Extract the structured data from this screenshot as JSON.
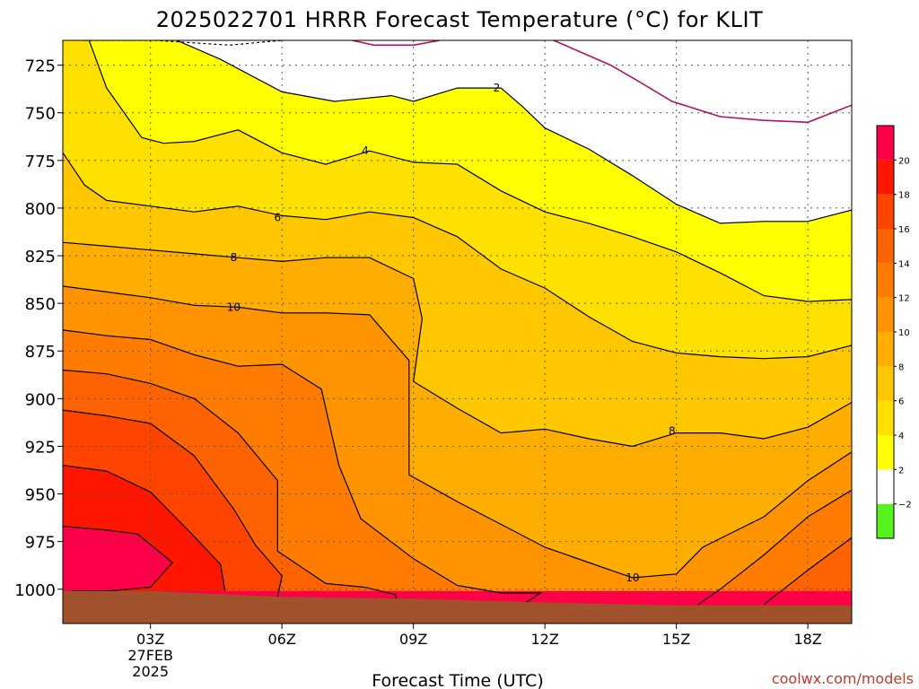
{
  "chart_data": {
    "type": "heatmap",
    "title": "2025022701 HRRR Forecast Temperature (°C) for KLIT",
    "xlabel": "Forecast Time (UTC)",
    "ylabel": "",
    "x_unit": "forecast hour from 00Z 27 Feb 2025",
    "xlim": [
      1,
      19
    ],
    "y_unit": "hPa",
    "ylim": [
      1018,
      712
    ],
    "y_ticks": [
      725,
      750,
      775,
      800,
      825,
      850,
      875,
      900,
      925,
      950,
      975,
      1000
    ],
    "y_tick_labels": [
      "725",
      "750",
      "775",
      "800",
      "825",
      "850",
      "875",
      "900",
      "925",
      "950",
      "975",
      "1000"
    ],
    "x_ticks": [
      3,
      6,
      9,
      12,
      15,
      18
    ],
    "x_tick_labels": [
      "03Z",
      "06Z",
      "09Z",
      "12Z",
      "15Z",
      "18Z"
    ],
    "x_date_label": [
      "27FEB",
      "2025"
    ],
    "grid": true,
    "legend": "right",
    "colorbar": {
      "ticks": [
        -2,
        2,
        4,
        6,
        8,
        10,
        12,
        14,
        16,
        18,
        20
      ],
      "tick_labels": [
        "−2",
        "2",
        "4",
        "6",
        "8",
        "10",
        "12",
        "14",
        "16",
        "18",
        "20"
      ],
      "bands": [
        {
          "lo": -6,
          "hi": -2,
          "color": "#55f21e"
        },
        {
          "lo": -2,
          "hi": 2,
          "color": "#ffffff"
        },
        {
          "lo": 2,
          "hi": 4,
          "color": "#ffff00"
        },
        {
          "lo": 4,
          "hi": 6,
          "color": "#ffe100"
        },
        {
          "lo": 6,
          "hi": 8,
          "color": "#ffc700"
        },
        {
          "lo": 8,
          "hi": 10,
          "color": "#ffae00"
        },
        {
          "lo": 10,
          "hi": 12,
          "color": "#ff9400"
        },
        {
          "lo": 12,
          "hi": 14,
          "color": "#ff7c00"
        },
        {
          "lo": 14,
          "hi": 16,
          "color": "#ff6200"
        },
        {
          "lo": 16,
          "hi": 18,
          "color": "#ff4400"
        },
        {
          "lo": 18,
          "hi": 20,
          "color": "#ff1600"
        },
        {
          "lo": 20,
          "hi": 22,
          "color": "#ff0048"
        }
      ]
    },
    "contours": [
      {
        "level": -2,
        "points": [
          [
            1.5,
            712
          ],
          [
            3.1,
            712
          ],
          [
            4.8,
            714.5
          ],
          [
            6.0,
            712
          ]
        ],
        "dashed": true
      },
      {
        "level": 0,
        "points": [
          [
            7.6,
            712
          ],
          [
            8.1,
            714.5
          ],
          [
            9.0,
            714.5
          ],
          [
            9.6,
            712
          ]
        ]
      },
      {
        "level": 0,
        "points": [
          [
            12.2,
            712
          ],
          [
            13.5,
            725
          ],
          [
            14.1,
            733
          ],
          [
            14.9,
            744
          ],
          [
            16.0,
            752
          ],
          [
            17.0,
            754
          ],
          [
            18.0,
            755
          ],
          [
            19.0,
            746
          ]
        ]
      },
      {
        "level": 2,
        "points": [
          [
            3.6,
            712
          ],
          [
            4.6,
            722
          ],
          [
            6.0,
            739
          ],
          [
            7.2,
            744
          ],
          [
            8.5,
            741
          ],
          [
            9.0,
            744
          ],
          [
            10.0,
            737
          ],
          [
            11.0,
            737
          ],
          [
            11.5,
            747
          ],
          [
            12.0,
            758
          ],
          [
            13.0,
            769
          ],
          [
            14.0,
            783
          ],
          [
            15.0,
            798
          ],
          [
            15.6,
            804
          ],
          [
            16.0,
            808
          ],
          [
            17.0,
            807
          ],
          [
            18.0,
            807
          ],
          [
            19.0,
            801
          ]
        ]
      },
      {
        "level": 4,
        "points": [
          [
            1.6,
            712
          ],
          [
            2.0,
            737
          ],
          [
            2.8,
            763
          ],
          [
            3.3,
            766
          ],
          [
            4.0,
            765
          ],
          [
            5.0,
            759
          ],
          [
            6.0,
            771
          ],
          [
            7.0,
            777
          ],
          [
            8.0,
            770
          ],
          [
            9.0,
            776
          ],
          [
            10.0,
            777
          ],
          [
            11.0,
            791
          ],
          [
            12.0,
            802
          ],
          [
            13.0,
            808
          ],
          [
            14.0,
            815
          ],
          [
            15.0,
            823
          ],
          [
            16.0,
            834
          ],
          [
            17.0,
            846
          ],
          [
            18.0,
            849
          ],
          [
            19.0,
            848
          ]
        ]
      },
      {
        "level": 6,
        "points": [
          [
            1.0,
            771
          ],
          [
            1.5,
            788
          ],
          [
            2.0,
            796
          ],
          [
            3.0,
            799
          ],
          [
            4.0,
            802
          ],
          [
            5.0,
            799
          ],
          [
            6.0,
            804
          ],
          [
            7.0,
            806
          ],
          [
            8.0,
            802
          ],
          [
            9.0,
            805
          ],
          [
            10.0,
            815
          ],
          [
            11.0,
            832
          ],
          [
            12.0,
            842
          ],
          [
            13.0,
            857
          ],
          [
            14.0,
            870
          ],
          [
            15.0,
            876
          ],
          [
            16.0,
            878
          ],
          [
            17.0,
            879
          ],
          [
            18.0,
            878
          ],
          [
            19.0,
            872
          ]
        ]
      },
      {
        "level": 8,
        "points": [
          [
            1.0,
            818
          ],
          [
            2.0,
            820
          ],
          [
            3.0,
            822
          ],
          [
            4.0,
            824
          ],
          [
            5.0,
            826
          ],
          [
            6.0,
            828
          ],
          [
            7.0,
            826
          ],
          [
            8.0,
            826
          ],
          [
            9.0,
            837
          ],
          [
            9.2,
            858
          ],
          [
            9.0,
            891
          ],
          [
            10.0,
            905
          ],
          [
            11.0,
            918
          ],
          [
            12.0,
            916
          ],
          [
            13.0,
            921
          ],
          [
            14.0,
            925
          ],
          [
            15.0,
            918
          ],
          [
            16.0,
            918
          ],
          [
            17.0,
            921
          ],
          [
            18.0,
            915
          ],
          [
            19.0,
            902
          ]
        ]
      },
      {
        "level": 10,
        "points": [
          [
            1.0,
            841
          ],
          [
            2.0,
            844
          ],
          [
            3.0,
            847
          ],
          [
            4.0,
            851
          ],
          [
            5.0,
            852
          ],
          [
            6.0,
            855
          ],
          [
            7.0,
            855
          ],
          [
            8.0,
            856
          ],
          [
            8.9,
            880
          ],
          [
            8.9,
            913
          ],
          [
            8.9,
            940
          ],
          [
            10.0,
            954
          ],
          [
            11.0,
            966
          ],
          [
            12.0,
            978
          ],
          [
            13.0,
            986
          ],
          [
            14.0,
            994
          ],
          [
            15.0,
            992
          ],
          [
            15.6,
            978
          ],
          [
            17.0,
            962
          ],
          [
            18.0,
            943
          ],
          [
            19.0,
            928
          ]
        ]
      },
      {
        "level": 12,
        "points": [
          [
            1.0,
            864
          ],
          [
            2.0,
            867
          ],
          [
            3.0,
            869
          ],
          [
            4.0,
            877
          ],
          [
            5.0,
            883
          ],
          [
            6.0,
            882
          ],
          [
            6.9,
            895
          ],
          [
            7.3,
            935
          ],
          [
            7.8,
            963
          ],
          [
            9.0,
            984
          ],
          [
            10.0,
            998
          ],
          [
            11.0,
            1002
          ],
          [
            11.9,
            1002
          ],
          [
            11.5,
            1008
          ],
          [
            12.0,
            1008
          ]
        ]
      },
      {
        "level": 12,
        "points": [
          [
            15.5,
            1008
          ],
          [
            16.0,
            1000
          ],
          [
            17.0,
            982
          ],
          [
            18.0,
            962
          ],
          [
            19.0,
            948
          ]
        ]
      },
      {
        "level": 14,
        "points": [
          [
            1.0,
            885
          ],
          [
            2.0,
            887
          ],
          [
            3.0,
            892
          ],
          [
            4.0,
            900
          ],
          [
            5.0,
            918
          ],
          [
            5.9,
            943
          ],
          [
            5.9,
            980
          ],
          [
            7.0,
            997
          ],
          [
            7.9,
            999
          ],
          [
            8.6,
            1003
          ],
          [
            8.6,
            1006
          ]
        ]
      },
      {
        "level": 14,
        "points": [
          [
            17.0,
            1008
          ],
          [
            18.0,
            990
          ],
          [
            19.0,
            973
          ]
        ]
      },
      {
        "level": 16,
        "points": [
          [
            1.0,
            906
          ],
          [
            2.0,
            909
          ],
          [
            3.0,
            913
          ],
          [
            4.0,
            930
          ],
          [
            4.9,
            958
          ],
          [
            5.4,
            977
          ],
          [
            6.0,
            993
          ],
          [
            5.9,
            1004
          ],
          [
            5.7,
            1006
          ]
        ]
      },
      {
        "level": 18,
        "points": [
          [
            1.0,
            935
          ],
          [
            2.0,
            938
          ],
          [
            3.0,
            949
          ],
          [
            3.9,
            970
          ],
          [
            4.6,
            987
          ],
          [
            4.7,
            1001
          ]
        ]
      },
      {
        "level": 20,
        "points": [
          [
            1.0,
            967
          ],
          [
            2.0,
            969
          ],
          [
            2.7,
            971
          ],
          [
            3.5,
            986
          ],
          [
            3.0,
            999
          ],
          [
            2.0,
            1001
          ],
          [
            1.2,
            1001
          ]
        ]
      }
    ],
    "contour_labels": [
      {
        "text": "2",
        "x": 10.9,
        "y": 737
      },
      {
        "text": "4",
        "x": 7.9,
        "y": 770
      },
      {
        "text": "6",
        "x": 5.9,
        "y": 805
      },
      {
        "text": "8",
        "x": 4.9,
        "y": 826
      },
      {
        "text": "10",
        "x": 4.9,
        "y": 852
      },
      {
        "text": "8",
        "x": 14.9,
        "y": 917
      },
      {
        "text": "10",
        "x": 14.0,
        "y": 994
      }
    ],
    "terrain": {
      "color": "#a0522d",
      "top": [
        [
          1,
          1001
        ],
        [
          3,
          1001
        ],
        [
          6,
          1004
        ],
        [
          9,
          1005
        ],
        [
          12,
          1007
        ],
        [
          15,
          1008.5
        ],
        [
          19,
          1008.5
        ]
      ]
    }
  },
  "credit": "coolwx.com/models"
}
